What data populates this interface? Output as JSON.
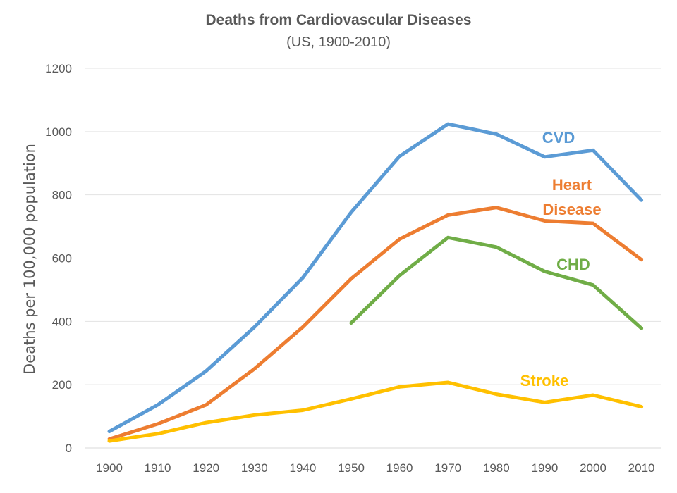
{
  "chart_data": {
    "type": "line",
    "title": "Deaths from Cardiovascular Diseases",
    "subtitle": "(US, 1900-2010)",
    "xlabel": "",
    "ylabel": "Deaths per 100,000 population",
    "ylim": [
      0,
      1200
    ],
    "yticks": [
      0,
      200,
      400,
      600,
      800,
      1000,
      1200
    ],
    "categories": [
      "1900",
      "1910",
      "1920",
      "1930",
      "1940",
      "1950",
      "1960",
      "1970",
      "1980",
      "1990",
      "2000",
      "2010"
    ],
    "grid": true,
    "legend": "none",
    "series": [
      {
        "name": "CVD",
        "color": "#5b9bd5",
        "values": [
          52,
          136,
          243,
          382,
          538,
          745,
          922,
          1024,
          992,
          920,
          941,
          783
        ]
      },
      {
        "name": "Heart Disease",
        "label_lines": [
          "Heart",
          "Disease"
        ],
        "color": "#ed7d31",
        "values": [
          28,
          76,
          136,
          250,
          382,
          535,
          660,
          736,
          760,
          718,
          710,
          595
        ]
      },
      {
        "name": "CHD",
        "color": "#70ad47",
        "values": [
          null,
          null,
          null,
          null,
          null,
          395,
          545,
          665,
          635,
          558,
          515,
          378
        ]
      },
      {
        "name": "Stroke",
        "color": "#ffc000",
        "values": [
          22,
          45,
          80,
          104,
          119,
          155,
          193,
          207,
          170,
          144,
          167,
          130
        ]
      }
    ]
  }
}
